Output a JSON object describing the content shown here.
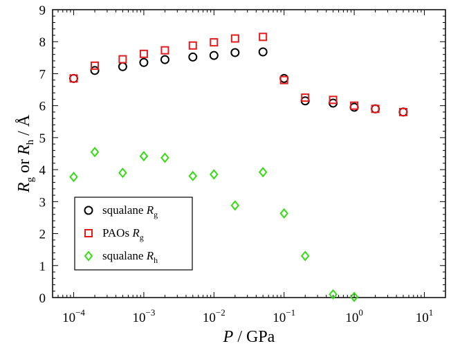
{
  "chart_data": {
    "type": "scatter",
    "xscale": "log",
    "xlim": [
      5e-05,
      20
    ],
    "ylim": [
      0,
      9
    ],
    "xlabel": {
      "italic": "P",
      "rest": " / GPa"
    },
    "ylabel": {
      "r1": "R",
      "s1": "g",
      "mid": " or ",
      "r2": "R",
      "s2": "h",
      "rest": " / Å"
    },
    "xticks": [
      {
        "value": 0.0001,
        "base": "10",
        "exp": "−4"
      },
      {
        "value": 0.001,
        "base": "10",
        "exp": "−3"
      },
      {
        "value": 0.01,
        "base": "10",
        "exp": "−2"
      },
      {
        "value": 0.1,
        "base": "10",
        "exp": "−1"
      },
      {
        "value": 1,
        "base": "10",
        "exp": "0"
      },
      {
        "value": 10,
        "base": "10",
        "exp": "1"
      }
    ],
    "yticks": [
      "0",
      "1",
      "2",
      "3",
      "4",
      "5",
      "6",
      "7",
      "8",
      "9"
    ],
    "grid": false,
    "legend_position": "lower-left",
    "series": [
      {
        "name": "squalane",
        "sym": "R",
        "sub": "g",
        "marker": "circle",
        "color": "#000000",
        "points": [
          [
            0.0001,
            6.85
          ],
          [
            0.0002,
            7.1
          ],
          [
            0.0005,
            7.22
          ],
          [
            0.001,
            7.35
          ],
          [
            0.002,
            7.44
          ],
          [
            0.005,
            7.52
          ],
          [
            0.01,
            7.57
          ],
          [
            0.02,
            7.66
          ],
          [
            0.05,
            7.68
          ],
          [
            0.1,
            6.85
          ],
          [
            0.2,
            6.15
          ],
          [
            0.5,
            6.08
          ],
          [
            1,
            5.95
          ],
          [
            2,
            5.9
          ],
          [
            5,
            5.8
          ]
        ]
      },
      {
        "name": "PAOs",
        "sym": "R",
        "sub": "g",
        "marker": "square",
        "color": "#e41a1c",
        "points": [
          [
            0.0001,
            6.85
          ],
          [
            0.0002,
            7.25
          ],
          [
            0.0005,
            7.45
          ],
          [
            0.001,
            7.62
          ],
          [
            0.002,
            7.73
          ],
          [
            0.005,
            7.88
          ],
          [
            0.01,
            7.98
          ],
          [
            0.02,
            8.1
          ],
          [
            0.05,
            8.15
          ],
          [
            0.1,
            6.8
          ],
          [
            0.2,
            6.25
          ],
          [
            0.5,
            6.18
          ],
          [
            1,
            6.0
          ],
          [
            2,
            5.9
          ],
          [
            5,
            5.8
          ]
        ]
      },
      {
        "name": "squalane",
        "sym": "R",
        "sub": "h",
        "marker": "diamond",
        "color": "#33dd11",
        "points": [
          [
            0.0001,
            3.77
          ],
          [
            0.0002,
            4.55
          ],
          [
            0.0005,
            3.9
          ],
          [
            0.001,
            4.42
          ],
          [
            0.002,
            4.37
          ],
          [
            0.005,
            3.8
          ],
          [
            0.01,
            3.85
          ],
          [
            0.02,
            2.88
          ],
          [
            0.05,
            3.92
          ],
          [
            0.1,
            2.63
          ],
          [
            0.2,
            1.3
          ],
          [
            0.5,
            0.1
          ],
          [
            1,
            0.02
          ]
        ]
      }
    ]
  }
}
